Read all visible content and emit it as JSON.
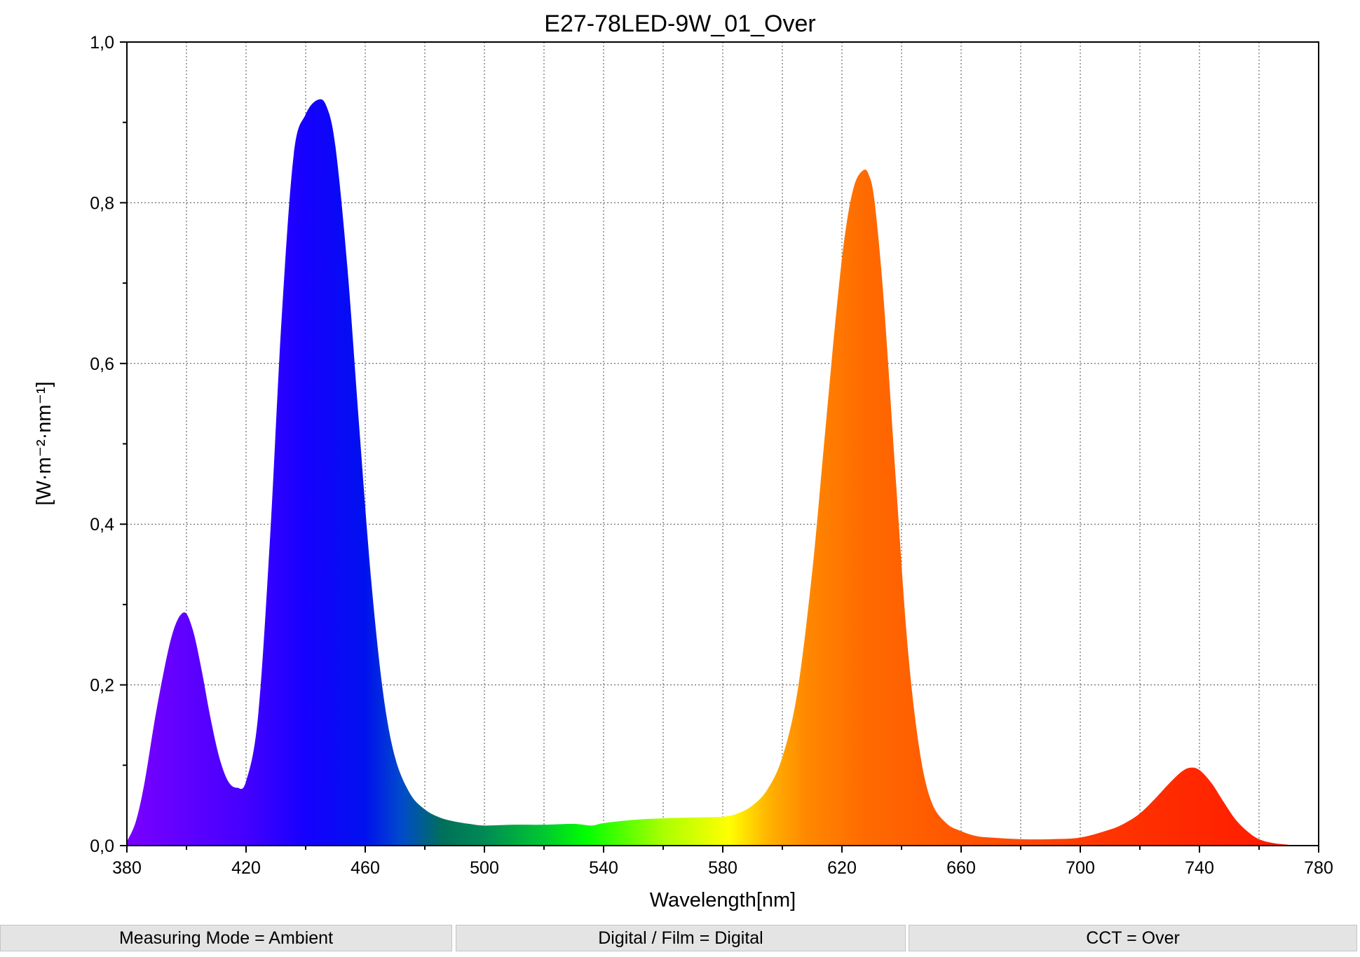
{
  "chart_data": {
    "type": "area",
    "title": "E27-78LED-9W_01_Over",
    "xlabel": "Wavelength[nm]",
    "ylabel": "[W·m⁻²·nm⁻¹]",
    "xlim": [
      380,
      780
    ],
    "ylim": [
      0,
      1.0
    ],
    "x_ticks": [
      380,
      420,
      460,
      500,
      540,
      580,
      620,
      660,
      700,
      740,
      780
    ],
    "x_tick_labels": [
      "380",
      "420",
      "460",
      "500",
      "540",
      "580",
      "620",
      "660",
      "700",
      "740",
      "780"
    ],
    "y_ticks": [
      0,
      0.2,
      0.4,
      0.6,
      0.8,
      1.0
    ],
    "y_tick_labels": [
      "0,0",
      "0,2",
      "0,4",
      "0,6",
      "0,8",
      "1,0"
    ],
    "grid": true,
    "fill": "spectral-gradient",
    "series": [
      {
        "x": [
          380,
          383,
          386,
          390,
          395,
          399,
          402,
          405,
          408,
          411,
          414,
          417,
          420,
          424,
          428,
          432,
          436,
          440,
          444,
          447,
          450,
          454,
          458,
          462,
          466,
          470,
          475,
          480,
          485,
          490,
          495,
          500,
          510,
          520,
          530,
          536,
          540,
          550,
          560,
          570,
          580,
          585,
          590,
          595,
          600,
          605,
          610,
          614,
          618,
          621,
          624,
          627,
          629,
          631,
          634,
          638,
          642,
          646,
          650,
          655,
          660,
          665,
          670,
          680,
          690,
          700,
          710,
          715,
          720,
          725,
          730,
          734,
          737,
          740,
          744,
          748,
          752,
          756,
          760,
          765,
          770,
          774
        ],
        "y": [
          0.005,
          0.03,
          0.08,
          0.17,
          0.26,
          0.29,
          0.27,
          0.22,
          0.16,
          0.11,
          0.08,
          0.072,
          0.08,
          0.16,
          0.38,
          0.66,
          0.86,
          0.91,
          0.928,
          0.92,
          0.87,
          0.72,
          0.52,
          0.33,
          0.19,
          0.11,
          0.065,
          0.045,
          0.035,
          0.03,
          0.027,
          0.025,
          0.026,
          0.026,
          0.027,
          0.025,
          0.028,
          0.032,
          0.034,
          0.035,
          0.036,
          0.04,
          0.05,
          0.07,
          0.11,
          0.19,
          0.34,
          0.5,
          0.66,
          0.76,
          0.82,
          0.84,
          0.835,
          0.8,
          0.68,
          0.46,
          0.25,
          0.12,
          0.055,
          0.028,
          0.018,
          0.012,
          0.01,
          0.008,
          0.008,
          0.01,
          0.02,
          0.028,
          0.04,
          0.058,
          0.078,
          0.092,
          0.097,
          0.094,
          0.078,
          0.055,
          0.033,
          0.018,
          0.008,
          0.003,
          0.001,
          0.0
        ]
      }
    ]
  },
  "status_bar": {
    "measuring_mode": "Measuring Mode = Ambient",
    "digital_film": "Digital / Film = Digital",
    "cct": "CCT = Over"
  }
}
